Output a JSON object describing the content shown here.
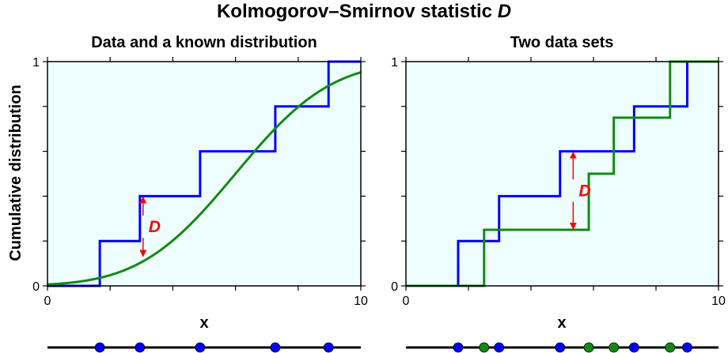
{
  "title_prefix": "Kolmogorov–Smirnov statistic ",
  "title_symbol": "D",
  "ylabel": "Cumulative distribution",
  "chart_data": [
    {
      "type": "line",
      "title": "Data and a known distribution",
      "xlabel": "x",
      "xlim": [
        0,
        10
      ],
      "ylim": [
        0,
        1
      ],
      "xticks_labeled": [
        "0",
        "10"
      ],
      "yticks_labeled": [
        "0",
        "1"
      ],
      "x_minor_step": 2,
      "y_minor_step": 0.2,
      "background": "#eefefe",
      "series": [
        {
          "color": "#0000ff",
          "kind": "ecdf",
          "x": [
            1.67,
            2.95,
            4.87,
            7.27,
            8.97
          ]
        },
        {
          "color": "#128a12",
          "kind": "normal_cdf",
          "mean": 6.0,
          "sd": 2.4
        }
      ],
      "d_marker": {
        "x": 3.05,
        "y_from": 0.4,
        "y_to": 0.128,
        "label": "D"
      },
      "strip_points": [
        {
          "x": 1.67,
          "color": "#0000ff"
        },
        {
          "x": 2.95,
          "color": "#0000ff"
        },
        {
          "x": 4.87,
          "color": "#0000ff"
        },
        {
          "x": 7.27,
          "color": "#0000ff"
        },
        {
          "x": 8.97,
          "color": "#0000ff"
        }
      ]
    },
    {
      "type": "line",
      "title": "Two data sets",
      "xlabel": "x",
      "xlim": [
        0,
        10
      ],
      "ylim": [
        0,
        1
      ],
      "xticks_labeled": [
        "0",
        "10"
      ],
      "yticks_labeled": [
        "0",
        "1"
      ],
      "x_minor_step": 2,
      "y_minor_step": 0.2,
      "background": "#eefefe",
      "series": [
        {
          "color": "#0000ff",
          "kind": "ecdf",
          "x": [
            1.67,
            2.98,
            4.93,
            7.3,
            9.0
          ]
        },
        {
          "color": "#128a12",
          "kind": "ecdf",
          "x": [
            2.5,
            5.85,
            6.65,
            8.45
          ]
        }
      ],
      "d_marker": {
        "x": 5.35,
        "y_from": 0.6,
        "y_to": 0.25,
        "label": "D"
      },
      "strip_points": [
        {
          "x": 1.67,
          "color": "#0000ff"
        },
        {
          "x": 2.5,
          "color": "#128a12"
        },
        {
          "x": 2.98,
          "color": "#0000ff"
        },
        {
          "x": 4.93,
          "color": "#0000ff"
        },
        {
          "x": 5.85,
          "color": "#128a12"
        },
        {
          "x": 6.65,
          "color": "#128a12"
        },
        {
          "x": 7.3,
          "color": "#0000ff"
        },
        {
          "x": 8.45,
          "color": "#128a12"
        },
        {
          "x": 9.0,
          "color": "#0000ff"
        }
      ]
    }
  ]
}
